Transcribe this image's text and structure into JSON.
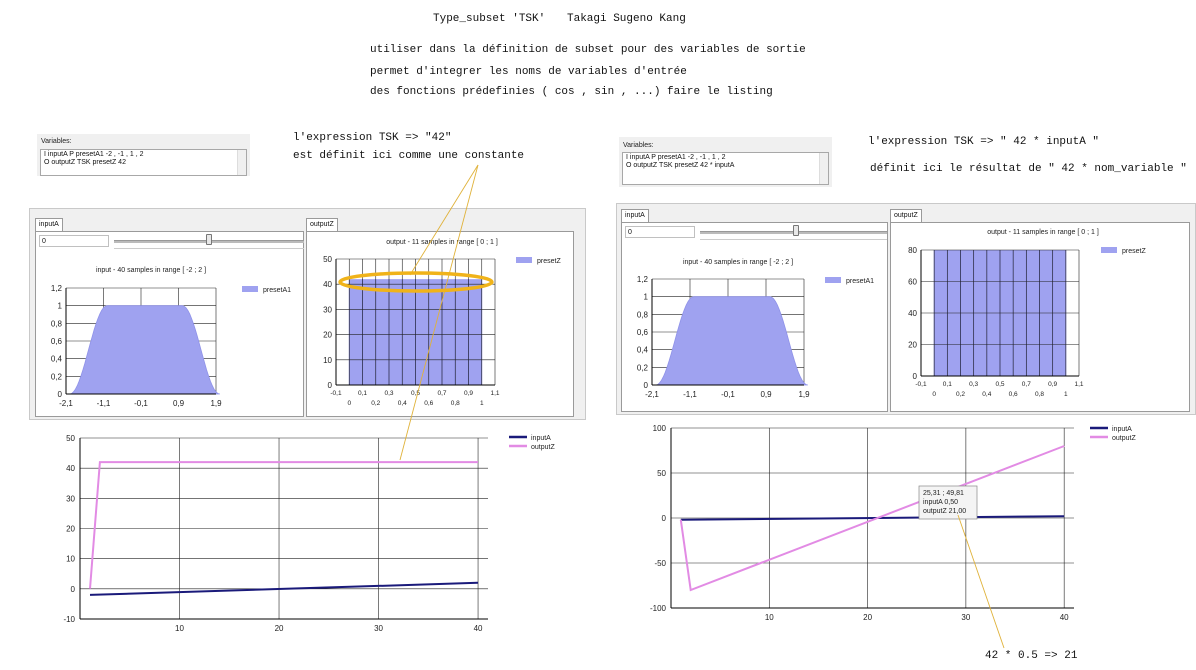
{
  "header": {
    "title_left": "Type_subset 'TSK'",
    "title_right": "Takagi Sugeno Kang",
    "line1": "utiliser dans la définition de subset pour des variables de sortie",
    "line2": "permet d'integrer les noms de variables d'entrée",
    "line3": "des fonctions prédefinies ( cos , sin , ...) faire le listing"
  },
  "left": {
    "annotation1": "l'expression TSK  => \"42\"",
    "annotation2": "est définit ici comme une constante",
    "variables": {
      "label": "Variables:",
      "line1": "I inputA P  presetA1 -2 , -1 , 1 , 2",
      "line2": "O outputZ TSK  presetZ 42"
    },
    "tab_input": "inputA",
    "tab_output": "outputZ",
    "input_value": "0",
    "slider_value": 0.5,
    "input_chart": {
      "title": "input - 40 samples in range  [ -2 ; 2 ]",
      "legend": "presetA1",
      "yticks": [
        "1,2",
        "1",
        "0,8",
        "0,6",
        "0,4",
        "0,2",
        "0"
      ],
      "xticks": [
        "-2,1",
        "-1,1",
        "-0,1",
        "0,9",
        "1,9"
      ]
    },
    "output_chart": {
      "title": "output - 11 samples in range  [ 0 ; 1 ]",
      "legend": "presetZ",
      "yticks": [
        "50",
        "40",
        "30",
        "20",
        "10",
        "0"
      ],
      "xticks_top": [
        "-0,1",
        "0,1",
        "0,3",
        "0,5",
        "0,7",
        "0,9",
        "1,1"
      ],
      "xticks_bottom": [
        "0",
        "0,2",
        "0,4",
        "0,6",
        "0,8",
        "1"
      ]
    },
    "main_chart": {
      "legend_series1": "inputA",
      "legend_series2": "outputZ",
      "yticks": [
        "50",
        "40",
        "30",
        "20",
        "10",
        "0",
        "-10"
      ],
      "xticks": [
        "10",
        "20",
        "30",
        "40"
      ]
    }
  },
  "right": {
    "annotation1": "l'expression TSK     => \" 42 * inputA \"",
    "annotation2": "définit ici le résultat de \" 42 * nom_variable \"",
    "annotation3": "42 * 0.5 => 21",
    "variables": {
      "label": "Variables:",
      "line1": "I inputA P  presetA1 -2 , -1 , 1 , 2",
      "line2": "O outputZ TSK  presetZ 42 * inputA"
    },
    "tab_input": "inputA",
    "tab_output": "outputZ",
    "input_value": "0",
    "slider_value": 0.5,
    "input_chart": {
      "title": "input - 40 samples in range  [ -2 ; 2 ]",
      "legend": "presetA1",
      "yticks": [
        "1,2",
        "1",
        "0,8",
        "0,6",
        "0,4",
        "0,2",
        "0"
      ],
      "xticks": [
        "-2,1",
        "-1,1",
        "-0,1",
        "0,9",
        "1,9"
      ]
    },
    "output_chart": {
      "title": "output - 11 samples in range  [ 0 ; 1 ]",
      "legend": "presetZ",
      "yticks": [
        "80",
        "60",
        "40",
        "20",
        "0"
      ],
      "xticks_top": [
        "-0,1",
        "0,1",
        "0,3",
        "0,5",
        "0,7",
        "0,9",
        "1,1"
      ],
      "xticks_bottom": [
        "0",
        "0,2",
        "0,4",
        "0,6",
        "0,8",
        "1"
      ]
    },
    "main_chart": {
      "legend_series1": "inputA",
      "legend_series2": "outputZ",
      "yticks": [
        "100",
        "50",
        "0",
        "-50",
        "-100"
      ],
      "xticks": [
        "10",
        "20",
        "30",
        "40"
      ],
      "tooltip_line1": "25,31 ; 49,81",
      "tooltip_line2": "inputA 0,50",
      "tooltip_line3": "outputZ 21,00"
    }
  },
  "colors": {
    "membership_fill": "#9fa2f0",
    "output_bar_fill": "#9fa2f0",
    "inputA_line": "#1a1a7a",
    "outputZ_line": "#e28be4",
    "annotation_line": "#e0b23a",
    "highlight_ellipse": "#f0b31a"
  },
  "chart_data": [
    {
      "type": "area",
      "title": "input - 40 samples in range  [ -2 ; 2 ]",
      "series": [
        {
          "name": "presetA1",
          "x": [
            -2,
            -1.8,
            -1.6,
            -1.4,
            -1.2,
            -1,
            1,
            1.2,
            1.4,
            1.6,
            1.8,
            2
          ],
          "values": [
            0,
            0.08,
            0.35,
            0.7,
            0.93,
            1,
            1,
            0.93,
            0.7,
            0.35,
            0.08,
            0
          ]
        }
      ],
      "xlim": [
        -2.1,
        1.9
      ],
      "ylim": [
        0,
        1.2
      ]
    },
    {
      "type": "bar",
      "title": "output - 11 samples in range  [ 0 ; 1 ]",
      "series": [
        {
          "name": "presetZ",
          "x": [
            0,
            0.1,
            0.2,
            0.3,
            0.4,
            0.5,
            0.6,
            0.7,
            0.8,
            0.9,
            1
          ],
          "values": [
            42,
            42,
            42,
            42,
            42,
            42,
            42,
            42,
            42,
            42,
            42
          ]
        }
      ],
      "xlim": [
        -0.1,
        1.1
      ],
      "ylim": [
        0,
        50
      ]
    },
    {
      "type": "line",
      "series": [
        {
          "name": "inputA",
          "x": [
            1,
            40
          ],
          "values": [
            -2,
            2
          ]
        },
        {
          "name": "outputZ",
          "x": [
            1,
            2,
            40
          ],
          "values": [
            0,
            42,
            42
          ]
        }
      ],
      "xlim": [
        0,
        41
      ],
      "ylim": [
        -10,
        50
      ]
    },
    {
      "type": "area",
      "title": "input - 40 samples in range  [ -2 ; 2 ]",
      "series": [
        {
          "name": "presetA1",
          "x": [
            -2,
            -1.8,
            -1.6,
            -1.4,
            -1.2,
            -1,
            1,
            1.2,
            1.4,
            1.6,
            1.8,
            2
          ],
          "values": [
            0,
            0.08,
            0.35,
            0.7,
            0.93,
            1,
            1,
            0.93,
            0.7,
            0.35,
            0.08,
            0
          ]
        }
      ],
      "xlim": [
        -2.1,
        1.9
      ],
      "ylim": [
        0,
        1.2
      ]
    },
    {
      "type": "bar",
      "title": "output - 11 samples in range  [ 0 ; 1 ]",
      "series": [
        {
          "name": "presetZ",
          "x": [
            0,
            0.1,
            0.2,
            0.3,
            0.4,
            0.5,
            0.6,
            0.7,
            0.8,
            0.9,
            1
          ],
          "values": [
            80,
            80,
            80,
            80,
            80,
            80,
            80,
            80,
            80,
            80,
            80
          ]
        }
      ],
      "xlim": [
        -0.1,
        1.1
      ],
      "ylim": [
        0,
        80
      ]
    },
    {
      "type": "line",
      "series": [
        {
          "name": "inputA",
          "x": [
            1,
            40
          ],
          "values": [
            -2,
            2
          ]
        },
        {
          "name": "outputZ",
          "x": [
            1,
            2,
            40
          ],
          "values": [
            -2,
            -80,
            80
          ]
        }
      ],
      "xlim": [
        0,
        41
      ],
      "ylim": [
        -100,
        100
      ]
    }
  ]
}
